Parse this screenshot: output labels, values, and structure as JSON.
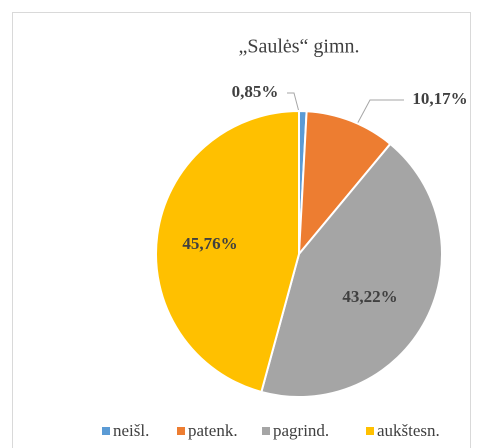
{
  "chart_data": {
    "type": "pie",
    "title": "„Saulės“ gimn.",
    "categories": [
      "neišl.",
      "patenk.",
      "pagrind.",
      "aukštesn."
    ],
    "values": [
      0.85,
      10.17,
      43.22,
      45.76
    ],
    "value_labels": [
      "0,85%",
      "10,17%",
      "43,22%",
      "45,76%"
    ],
    "colors": [
      "#5b9bd5",
      "#ed7d31",
      "#a5a5a5",
      "#ffc000"
    ],
    "legend": "bottom"
  }
}
